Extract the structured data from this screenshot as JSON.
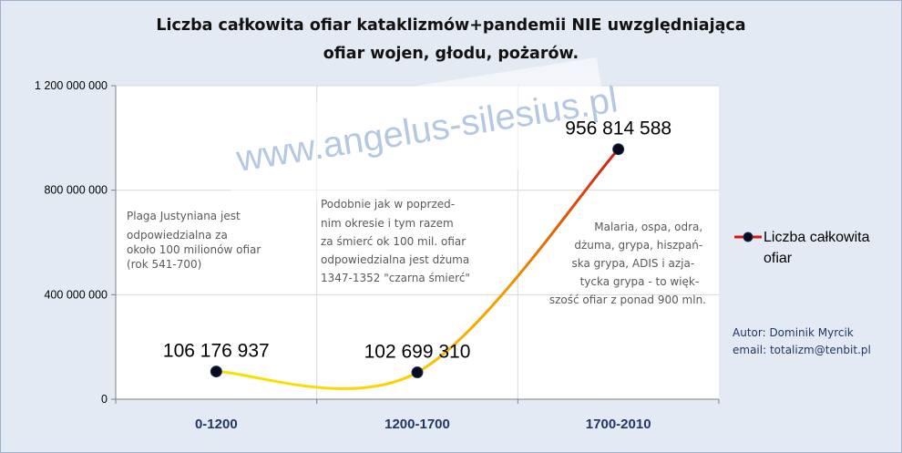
{
  "chart_data": {
    "type": "line",
    "title": "Liczba całkowita ofiar kataklizmów+pandemii NIE uwzględniająca",
    "subtitle": "ofiar wojen, głodu, pożarów.",
    "categories": [
      "0-1200",
      "1200-1700",
      "1700-2010"
    ],
    "series": [
      {
        "name": "Liczba całkowita ofiar",
        "values": [
          106176937,
          102699310,
          956814588
        ]
      }
    ],
    "data_labels": [
      "106 176 937",
      "102 699 310",
      "956 814 588"
    ],
    "yticks": [
      0,
      400000000,
      800000000,
      1200000000
    ],
    "ytick_labels": [
      "0",
      "400 000 000",
      "800 000 000",
      "1 200 000 000"
    ],
    "ylim": [
      0,
      1200000000
    ],
    "grid": true,
    "legend_position": "right",
    "legend_lines": [
      "Liczba całkowita",
      "ofiar"
    ],
    "annotations": [
      [
        "Plaga Justyniana  jest",
        "odpowiedzialna za",
        "około 100 milionów ofiar",
        "(rok 541-700)"
      ],
      [
        "Podobnie jak w poprzed-",
        "nim okresie i tym razem",
        "za śmierć ok 100 mil. ofiar",
        "odpowiedzialna jest dżuma",
        "1347-1352   \"czarna śmierć\""
      ],
      [
        "Malaria, ospa, odra,",
        "dżuma, grypa, hiszpań-",
        "ska grypa, ADIS i azja-",
        "tycka grypa - to więk-",
        "szość ofiar z ponad 900 mln."
      ]
    ],
    "author": [
      "Autor:  Dominik Myrcik",
      "email:  totalizm@tenbit.pl"
    ],
    "watermark": "www.angelus-silesius.pl",
    "colors": {
      "background": "#e3eaf4",
      "plot": "#ffffff",
      "line_start": "#f5e400",
      "line_end": "#d41a10",
      "marker": "#0a0a1e",
      "axis_labels": "#1f3864"
    }
  }
}
